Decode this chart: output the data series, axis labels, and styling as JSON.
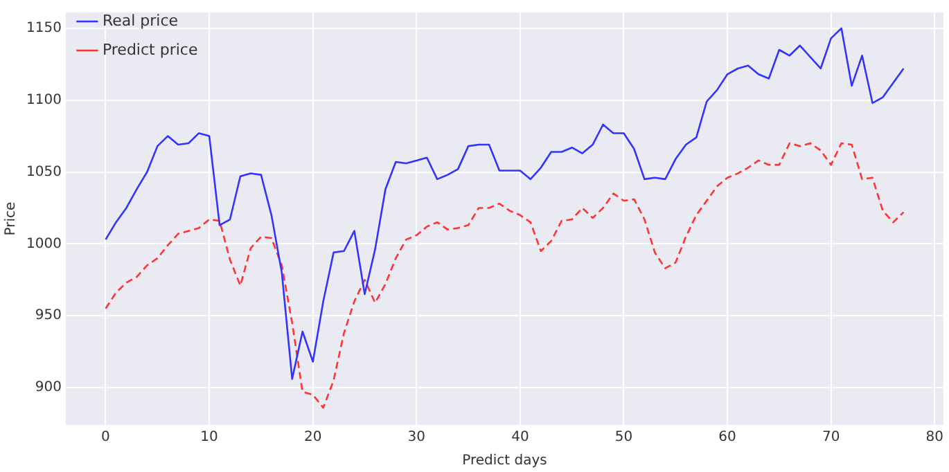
{
  "chart_data": {
    "type": "line",
    "xlabel": "Predict days",
    "ylabel": "Price",
    "x": [
      0,
      1,
      2,
      3,
      4,
      5,
      6,
      7,
      8,
      9,
      10,
      11,
      12,
      13,
      14,
      15,
      16,
      17,
      18,
      19,
      20,
      21,
      22,
      23,
      24,
      25,
      26,
      27,
      28,
      29,
      30,
      31,
      32,
      33,
      34,
      35,
      36,
      37,
      38,
      39,
      40,
      41,
      42,
      43,
      44,
      45,
      46,
      47,
      48,
      49,
      50,
      51,
      52,
      53,
      54,
      55,
      56,
      57,
      58,
      59,
      60,
      61,
      62,
      63,
      64,
      65,
      66,
      67,
      68,
      69,
      70,
      71,
      72,
      73,
      74,
      75,
      76,
      77
    ],
    "series": [
      {
        "name": "Real price",
        "color": "#3333ff",
        "line_style": "solid",
        "values": [
          1003,
          1015,
          1025,
          1038,
          1050,
          1068,
          1075,
          1069,
          1070,
          1077,
          1075,
          1013,
          1017,
          1047,
          1049,
          1048,
          1020,
          980,
          906,
          939,
          918,
          960,
          994,
          995,
          1009,
          965,
          996,
          1038,
          1057,
          1056,
          1058,
          1060,
          1045,
          1048,
          1052,
          1068,
          1069,
          1069,
          1051,
          1051,
          1051,
          1045,
          1053,
          1064,
          1064,
          1067,
          1063,
          1069,
          1083,
          1077,
          1077,
          1066,
          1045,
          1046,
          1045,
          1059,
          1069,
          1074,
          1099,
          1107,
          1118,
          1122,
          1124,
          1118,
          1115,
          1135,
          1131,
          1138,
          1130,
          1122,
          1143,
          1150,
          1110,
          1131,
          1098,
          1102,
          1112,
          1122
        ]
      },
      {
        "name": "Predict price",
        "color": "#ff3333",
        "line_style": "dashed",
        "values": [
          955,
          966,
          973,
          977,
          985,
          990,
          999,
          1007,
          1009,
          1011,
          1017,
          1016,
          989,
          971,
          997,
          1005,
          1004,
          985,
          945,
          897,
          895,
          886,
          905,
          938,
          960,
          975,
          959,
          972,
          990,
          1003,
          1006,
          1012,
          1015,
          1010,
          1011,
          1013,
          1025,
          1025,
          1028,
          1023,
          1020,
          1015,
          995,
          1002,
          1016,
          1017,
          1025,
          1018,
          1025,
          1035,
          1030,
          1031,
          1017,
          994,
          983,
          987,
          1005,
          1020,
          1030,
          1040,
          1046,
          1049,
          1053,
          1058,
          1055,
          1055,
          1070,
          1068,
          1070,
          1065,
          1055,
          1070,
          1069,
          1045,
          1046,
          1023,
          1015,
          1022
        ]
      }
    ],
    "xlim": [
      -3.85,
      80.85
    ],
    "xticks": [
      0,
      10,
      20,
      30,
      40,
      50,
      60,
      70,
      80
    ],
    "ylim": [
      874,
      1161
    ],
    "yticks": [
      900,
      950,
      1000,
      1050,
      1100,
      1150
    ],
    "grid": true,
    "legend": "top left",
    "marker": "none"
  }
}
